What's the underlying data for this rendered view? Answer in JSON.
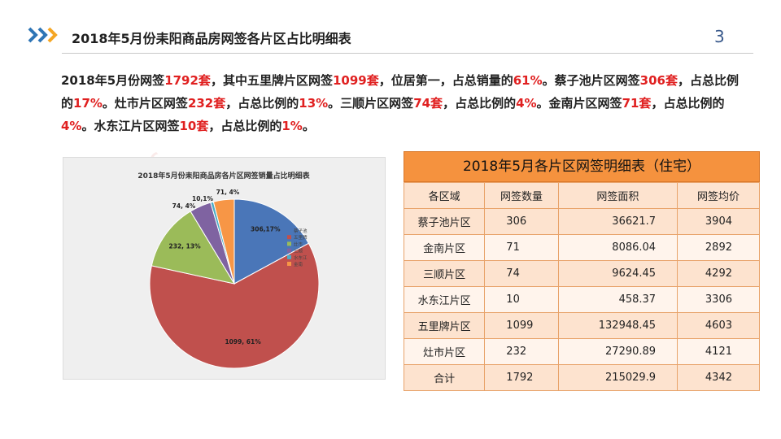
{
  "header": {
    "title": "2018年5月份耒阳商品房网签各片区占比明细表",
    "page_number": "3"
  },
  "summary": {
    "parts": [
      {
        "text": "2018年5月份网签",
        "hl": false
      },
      {
        "text": "1792套",
        "hl": true
      },
      {
        "text": "，其中五里牌片区网签",
        "hl": false
      },
      {
        "text": "1099套",
        "hl": true
      },
      {
        "text": "，位居第一，占总销量的",
        "hl": false
      },
      {
        "text": "61%",
        "hl": true
      },
      {
        "text": "。蔡子池片区网签",
        "hl": false
      },
      {
        "text": "306套",
        "hl": true
      },
      {
        "text": "，占总比例的",
        "hl": false
      },
      {
        "text": "17%",
        "hl": true
      },
      {
        "text": "。灶市片区网签",
        "hl": false
      },
      {
        "text": "232套",
        "hl": true
      },
      {
        "text": "，占总比例的",
        "hl": false
      },
      {
        "text": "13%",
        "hl": true
      },
      {
        "text": "。三顺片区网签",
        "hl": false
      },
      {
        "text": "74套",
        "hl": true
      },
      {
        "text": "，占总比例的",
        "hl": false
      },
      {
        "text": "4%",
        "hl": true
      },
      {
        "text": "。金南片区网签",
        "hl": false
      },
      {
        "text": "71套",
        "hl": true
      },
      {
        "text": "，占总比例的",
        "hl": false
      },
      {
        "text": "4%",
        "hl": true
      },
      {
        "text": "。水东江片区网签",
        "hl": false
      },
      {
        "text": "10套",
        "hl": true
      },
      {
        "text": "，占总比例的",
        "hl": false
      },
      {
        "text": "1%",
        "hl": true
      },
      {
        "text": "。",
        "hl": false
      }
    ]
  },
  "chart_data": {
    "type": "pie",
    "title": "2018年5月份耒阳商品房各片区网签销量占比明细表",
    "slices": [
      {
        "name": "蔡子池",
        "value": 306,
        "label": "306,17%",
        "color": "#4a76b8"
      },
      {
        "name": "五里牌",
        "value": 1099,
        "label": "1099, 61%",
        "color": "#c0504d"
      },
      {
        "name": "灶市",
        "value": 232,
        "label": "232, 13%",
        "color": "#9bbb59"
      },
      {
        "name": "三顺",
        "value": 74,
        "label": "74, 4%",
        "color": "#7f63a1"
      },
      {
        "name": "水东江",
        "value": 10,
        "label": "10,1%",
        "color": "#4bacc6"
      },
      {
        "name": "金南",
        "value": 71,
        "label": "71, 4%",
        "color": "#f79646"
      }
    ],
    "legend_position": "inside-right"
  },
  "table": {
    "title": "2018年5月各片区网签明细表（住宅）",
    "headers": [
      "各区域",
      "网签数量",
      "网签面积",
      "网签均价"
    ],
    "rows": [
      [
        "蔡子池片区",
        "306",
        "36621.7",
        "3904"
      ],
      [
        "金南片区",
        "71",
        "8086.04",
        "2892"
      ],
      [
        "三顺片区",
        "74",
        "9624.45",
        "4292"
      ],
      [
        "水东江片区",
        "10",
        "458.37",
        "3306"
      ],
      [
        "五里牌片区",
        "1099",
        "132948.45",
        "4603"
      ],
      [
        "灶市片区",
        "232",
        "27290.89",
        "4121"
      ],
      [
        "合计",
        "1792",
        "215029.9",
        "4342"
      ]
    ]
  },
  "colors": {
    "accent_orange": "#f5923e",
    "highlight_red": "#e02020",
    "logo_blue": "#2e75b6",
    "logo_orange": "#f5a623"
  }
}
